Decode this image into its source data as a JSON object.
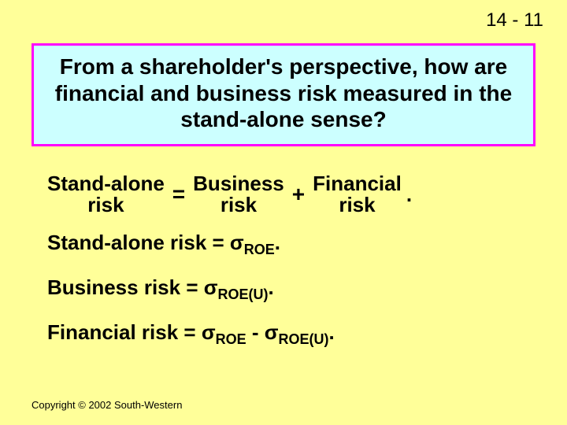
{
  "page_number": "14 - 11",
  "title": "From a shareholder's perspective, how are financial and business risk measured in the stand-alone sense?",
  "equation": {
    "term1_line1": "Stand-alone",
    "term1_line2": "risk",
    "op1": "=",
    "term2_line1": "Business",
    "term2_line2": "risk",
    "op2": "+",
    "term3_line1": "Financial",
    "term3_line2": "risk",
    "period": "."
  },
  "lines": {
    "l1_pre": "Stand-alone risk = ",
    "l1_sigma": "σ",
    "l1_sub": "ROE",
    "l1_post": ".",
    "l2_pre": "Business risk = ",
    "l2_sigma": "σ",
    "l2_sub": "ROE(U)",
    "l2_post": ".",
    "l3_pre": "Financial risk = ",
    "l3_sigma1": "σ",
    "l3_sub1": "ROE",
    "l3_mid": " - ",
    "l3_sigma2": "σ",
    "l3_sub2": "ROE(U)",
    "l3_post": "."
  },
  "copyright": "Copyright © 2002 South-Western",
  "colors": {
    "background": "#ffff99",
    "title_bg": "#ccffff",
    "title_border": "#ff00ff",
    "text": "#000000"
  }
}
